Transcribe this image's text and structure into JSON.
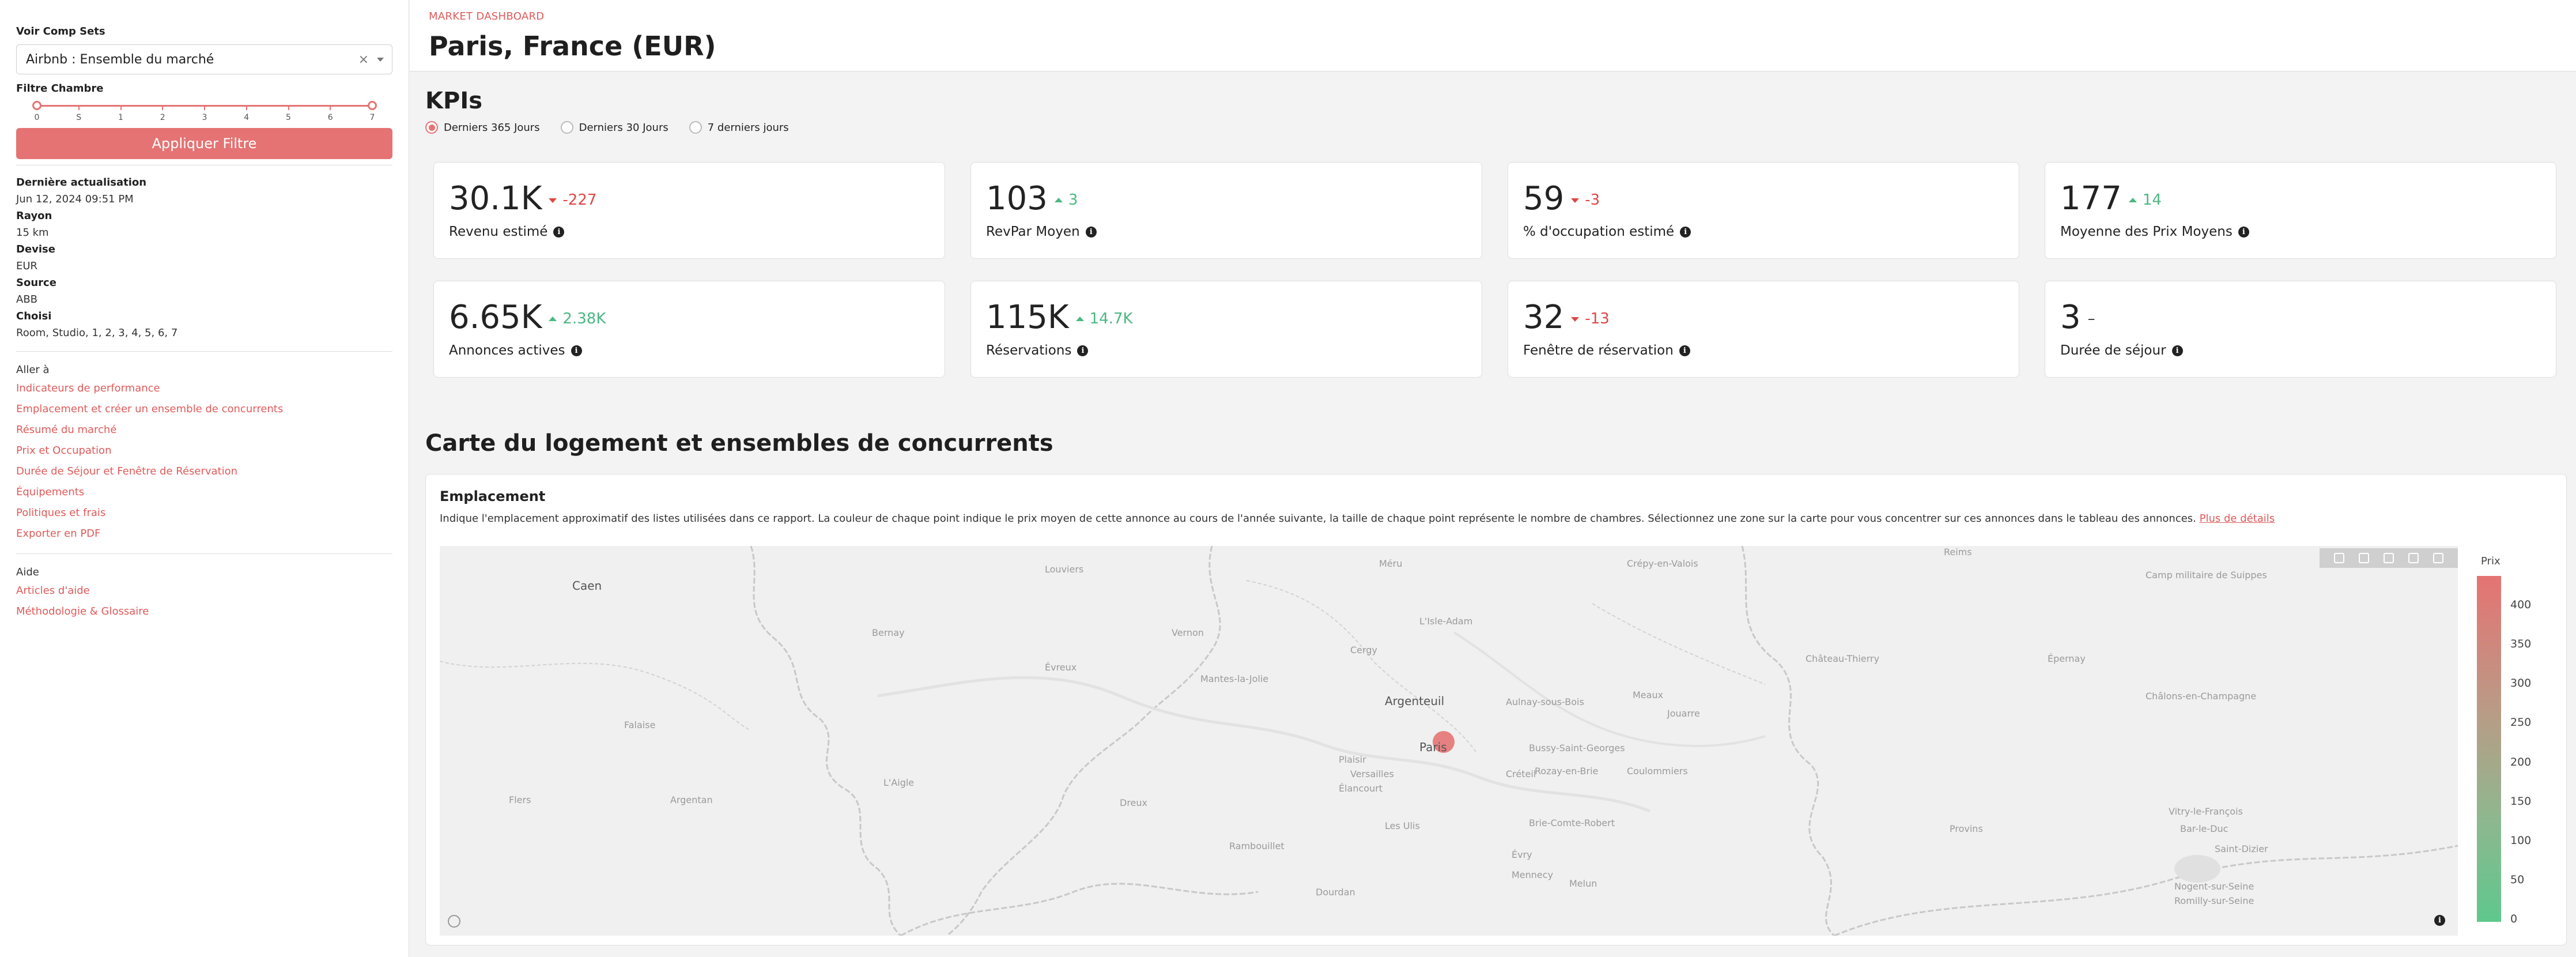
{
  "sidebar": {
    "comp_sets_label": "Voir Comp Sets",
    "comp_set_value": "Airbnb : Ensemble du marché",
    "clear_symbol": "×",
    "chambre_label": "Filtre Chambre",
    "slider": {
      "min": 0,
      "max": 7,
      "low": 0,
      "high": 7,
      "ticks": [
        "0",
        "S",
        "1",
        "2",
        "3",
        "4",
        "5",
        "6",
        "7"
      ]
    },
    "apply_label": "Appliquer Filtre",
    "meta": [
      {
        "k": "Dernière actualisation",
        "v": "Jun 12, 2024 09:51 PM"
      },
      {
        "k": "Rayon",
        "v": "15 km"
      },
      {
        "k": "Devise",
        "v": "EUR"
      },
      {
        "k": "Source",
        "v": "ABB"
      },
      {
        "k": "Choisi",
        "v": "Room, Studio, 1, 2, 3, 4, 5, 6, 7"
      }
    ],
    "goto_title": "Aller à",
    "goto_links": [
      "Indicateurs de performance",
      "Emplacement et créer un ensemble de concurrents",
      "Résumé du marché",
      "Prix et Occupation",
      "Durée de Séjour et Fenêtre de Réservation",
      "Équipements",
      "Politiques et frais",
      "Exporter en PDF"
    ],
    "help_title": "Aide",
    "help_links": [
      "Articles d'aide",
      "Méthodologie & Glossaire"
    ]
  },
  "header": {
    "eyebrow": "MARKET DASHBOARD",
    "title": "Paris, France (EUR)"
  },
  "kpis": {
    "title": "KPIs",
    "periods": [
      "Derniers 365 Jours",
      "Derniers 30 Jours",
      "7 derniers jours"
    ],
    "selected_period": 0,
    "cards": [
      {
        "value": "30.1K",
        "delta": "-227",
        "dir": "down",
        "label": "Revenu estimé"
      },
      {
        "value": "103",
        "delta": "3",
        "dir": "up",
        "label": "RevPar Moyen"
      },
      {
        "value": "59",
        "delta": "-3",
        "dir": "down",
        "label": "% d'occupation estimé"
      },
      {
        "value": "177",
        "delta": "14",
        "dir": "up",
        "label": "Moyenne des Prix Moyens"
      },
      {
        "value": "6.65K",
        "delta": "2.38K",
        "dir": "up",
        "label": "Annonces actives"
      },
      {
        "value": "115K",
        "delta": "14.7K",
        "dir": "up",
        "label": "Réservations"
      },
      {
        "value": "32",
        "delta": "-13",
        "dir": "down",
        "label": "Fenêtre de réservation"
      },
      {
        "value": "3",
        "delta": "–",
        "dir": "neutral",
        "label": "Durée de séjour"
      }
    ]
  },
  "map_section": {
    "title": "Carte du logement et ensembles de concurrents",
    "card_title": "Emplacement",
    "description": "Indique l'emplacement approximatif des listes utilisées dans ce rapport. La couleur de chaque point indique le prix moyen de cette annonce au cours de l'année suivante, la taille de chaque point représente le nombre de chambres. Sélectionnez une zone sur la carte pour vous concentrer sur ces annonces dans le tableau des annonces.",
    "details_link": "Plus de détails",
    "colorbar_title": "Prix",
    "colorbar_ticks": [
      "400",
      "350",
      "300",
      "250",
      "200",
      "150",
      "100",
      "50",
      "0"
    ],
    "colors": {
      "high": "#e57373",
      "low": "#5ec88c",
      "accent": "#e57373"
    },
    "places": [
      {
        "name": "Caen",
        "big": true
      },
      {
        "name": "Louviers"
      },
      {
        "name": "Bernay"
      },
      {
        "name": "Vernon"
      },
      {
        "name": "Évreux"
      },
      {
        "name": "L'Isle-Adam"
      },
      {
        "name": "Mantes-la-Jolie"
      },
      {
        "name": "Cergy"
      },
      {
        "name": "Méru"
      },
      {
        "name": "Crépy-en-Valois"
      },
      {
        "name": "Reims"
      },
      {
        "name": "Camp militaire de Suippes"
      },
      {
        "name": "Château-Thierry"
      },
      {
        "name": "Épernay"
      },
      {
        "name": "Châlons-en-Champagne"
      },
      {
        "name": "Argenteuil",
        "big": true
      },
      {
        "name": "Aulnay-sous-Bois"
      },
      {
        "name": "Meaux"
      },
      {
        "name": "Jouarre"
      },
      {
        "name": "Paris",
        "big": true
      },
      {
        "name": "Bussy-Saint-Georges"
      },
      {
        "name": "Rozay-en-Brie"
      },
      {
        "name": "Coulommiers"
      },
      {
        "name": "Falaise"
      },
      {
        "name": "Plaisir"
      },
      {
        "name": "Versailles"
      },
      {
        "name": "Élancourt"
      },
      {
        "name": "Créteil"
      },
      {
        "name": "Argentan"
      },
      {
        "name": "L'Aigle"
      },
      {
        "name": "Dreux"
      },
      {
        "name": "Flers"
      },
      {
        "name": "Les Ulis"
      },
      {
        "name": "Brie-Comte-Robert"
      },
      {
        "name": "Rambouillet"
      },
      {
        "name": "Évry"
      },
      {
        "name": "Mennecy"
      },
      {
        "name": "Melun"
      },
      {
        "name": "Provins"
      },
      {
        "name": "Bar-le-Duc"
      },
      {
        "name": "Vitry-le-François"
      },
      {
        "name": "Saint-Dizier"
      },
      {
        "name": "Nogent-sur-Seine"
      },
      {
        "name": "Romilly-sur-Seine"
      },
      {
        "name": "Dourdan"
      }
    ]
  }
}
